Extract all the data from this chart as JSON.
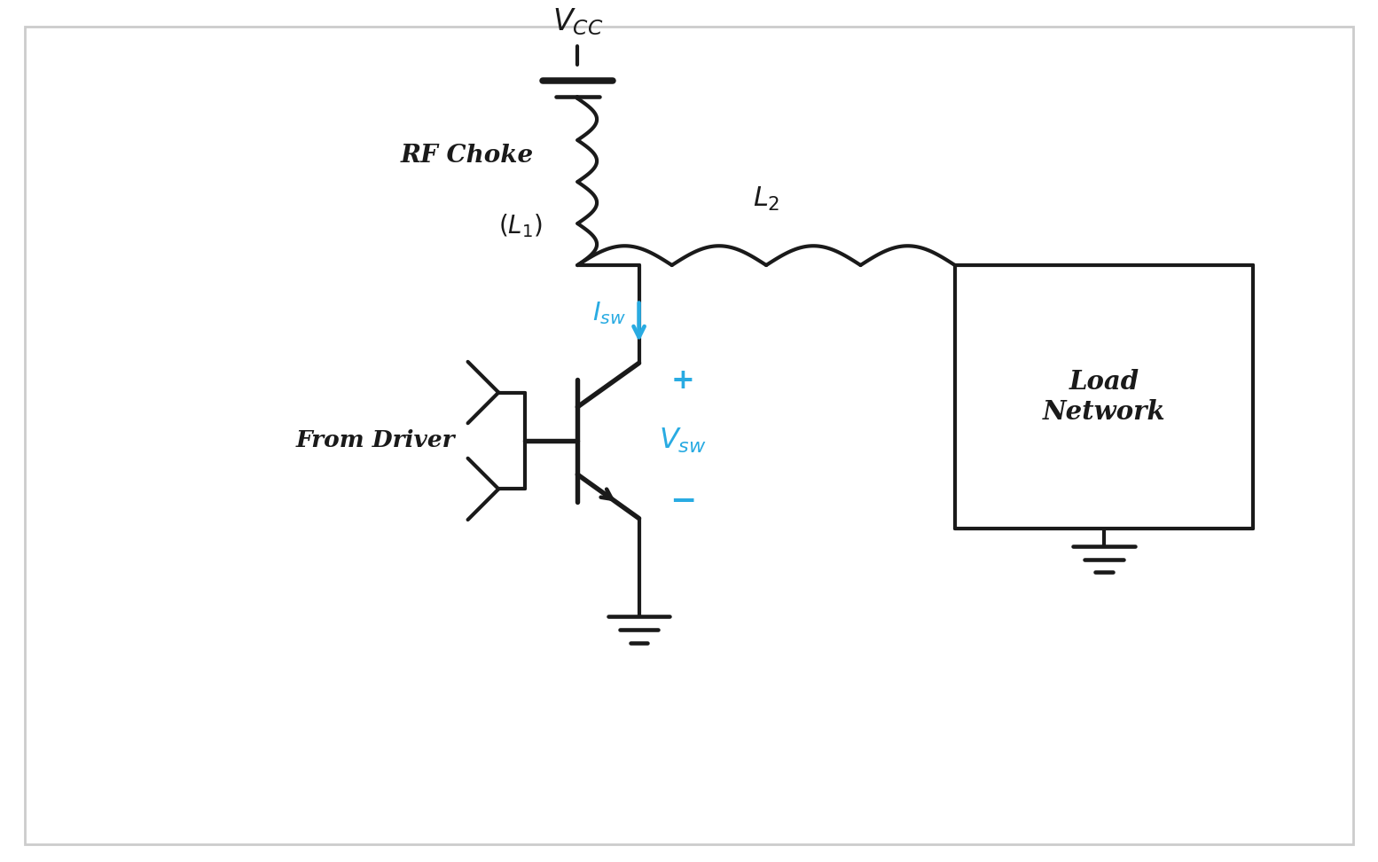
{
  "bg_color": "#ffffff",
  "line_color": "#1a1a1a",
  "blue_color": "#29ABE2",
  "line_width": 3.0,
  "fig_width": 15.54,
  "fig_height": 9.72,
  "vcc_label": "$V_{CC}$",
  "rf_choke_label": "RF Choke",
  "l1_label": "$(L_1)$",
  "l2_label": "$L_2$",
  "isw_label": "$I_{sw}$",
  "vsw_label": "$V_{sw}$",
  "from_driver_label": "From Driver",
  "load_network_label": "Load\nNetwork",
  "plus_label": "+",
  "minus_label": "−"
}
